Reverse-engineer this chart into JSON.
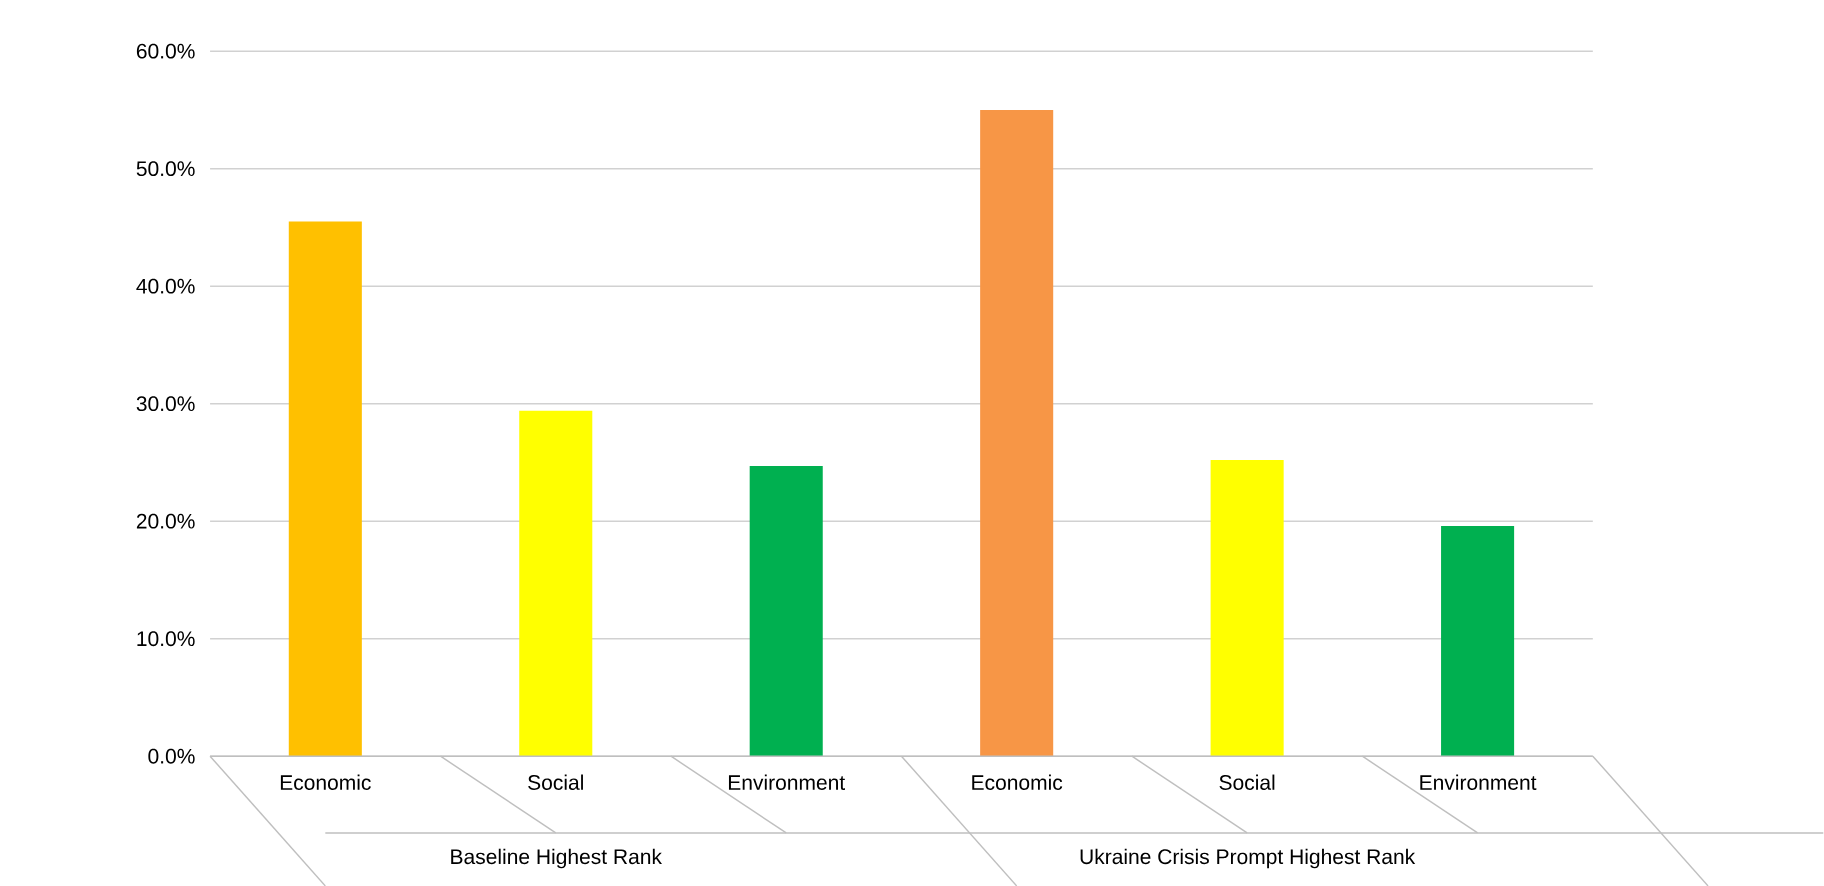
{
  "chart_data": {
    "type": "bar",
    "categories": [
      "Economic",
      "Social",
      "Environment",
      "Economic",
      "Social",
      "Environment"
    ],
    "values": [
      45.5,
      29.4,
      24.7,
      55.0,
      25.2,
      19.6
    ],
    "colors": [
      "#ffc000",
      "#ffff00",
      "#00b050",
      "#f79646",
      "#ffff00",
      "#00b050"
    ],
    "ylim": [
      0,
      60
    ],
    "yticks": [
      {
        "value": 0,
        "label": "0.0%"
      },
      {
        "value": 10,
        "label": "10.0%"
      },
      {
        "value": 20,
        "label": "20.0%"
      },
      {
        "value": 30,
        "label": "30.0%"
      },
      {
        "value": 40,
        "label": "40.0%"
      },
      {
        "value": 50,
        "label": "50.0%"
      },
      {
        "value": 60,
        "label": "60.0%"
      }
    ],
    "grid": "y",
    "annotations": [
      "Baseline Highest Rank",
      "Ukraine Crisis Prompt Highest Rank"
    ]
  }
}
